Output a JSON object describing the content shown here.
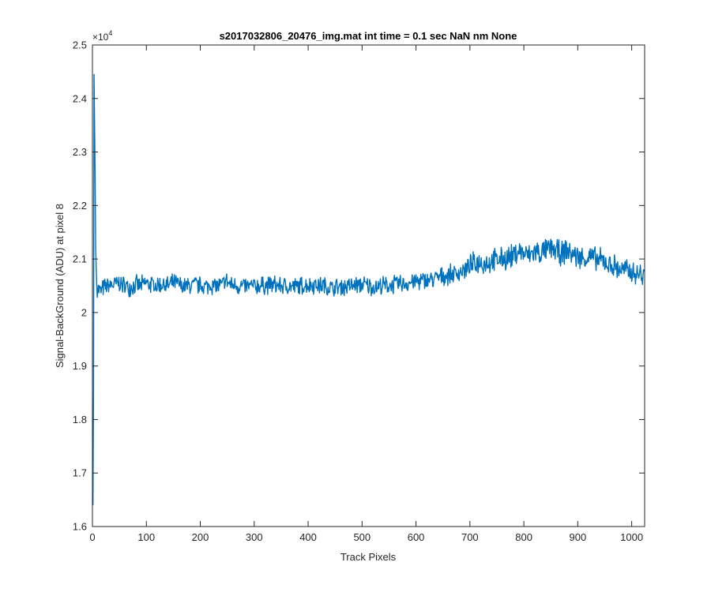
{
  "window": {
    "title": "s2017032806_20476_img.mat int time = 0.1 sec  NaN nm None"
  },
  "chart_data": {
    "type": "line",
    "title": "s2017032806_20476_img.mat int time = 0.1 sec  NaN nm None",
    "xlabel": "Track Pixels",
    "ylabel": "Signal-BackGround (ADU) at pixel 8",
    "xlim": [
      0,
      1024
    ],
    "ylim": [
      16000,
      25000
    ],
    "y_exponent_label": "×10",
    "y_exponent_power": "4",
    "x_ticks": [
      0,
      100,
      200,
      300,
      400,
      500,
      600,
      700,
      800,
      900,
      1000
    ],
    "x_tick_labels": [
      "0",
      "100",
      "200",
      "300",
      "400",
      "500",
      "600",
      "700",
      "800",
      "900",
      "1000"
    ],
    "y_ticks": [
      16000,
      17000,
      18000,
      19000,
      20000,
      21000,
      22000,
      23000,
      24000,
      25000
    ],
    "y_tick_labels": [
      "1.6",
      "1.7",
      "1.8",
      "1.9",
      "2",
      "2.1",
      "2.2",
      "2.3",
      "2.4",
      "2.5"
    ],
    "grid": false,
    "legend": "none",
    "series_color": "#0072BD",
    "series": [
      {
        "x": [
          1,
          2,
          3,
          4,
          5,
          6,
          8,
          10,
          15,
          20,
          30,
          40,
          50,
          60,
          70,
          80,
          90,
          100,
          110,
          120,
          130,
          140,
          150,
          160,
          170,
          180,
          190,
          200,
          210,
          220,
          230,
          240,
          248,
          255,
          270,
          290,
          310,
          330,
          350,
          370,
          390,
          410,
          430,
          445,
          460,
          480,
          500,
          520,
          540,
          560,
          580,
          600,
          620,
          640,
          660,
          680,
          700,
          715,
          725,
          740,
          760,
          780,
          790,
          800,
          810,
          820,
          830,
          840,
          850,
          860,
          870,
          880,
          890,
          900,
          910,
          920,
          930,
          940,
          950,
          960,
          970,
          980,
          990,
          1000,
          1010,
          1020,
          1024
        ],
        "y": [
          16400,
          18500,
          24450,
          23500,
          22600,
          21200,
          20500,
          20450,
          20400,
          20450,
          20500,
          20520,
          20550,
          20500,
          20480,
          20520,
          20500,
          20550,
          20520,
          20500,
          20530,
          20500,
          20550,
          20520,
          20480,
          20500,
          20520,
          20500,
          20480,
          20520,
          20500,
          20500,
          20600,
          20520,
          20500,
          20480,
          20500,
          20520,
          20500,
          20480,
          20500,
          20520,
          20500,
          20450,
          20480,
          20500,
          20520,
          20480,
          20500,
          20520,
          20550,
          20580,
          20600,
          20650,
          20700,
          20750,
          20850,
          20950,
          20920,
          20950,
          21000,
          21050,
          21150,
          21100,
          21050,
          21150,
          21100,
          21150,
          21200,
          21150,
          21100,
          21150,
          21100,
          21050,
          21000,
          21050,
          21000,
          20980,
          20950,
          20900,
          20850,
          20800,
          20780,
          20750,
          20720,
          20700,
          20650
        ]
      }
    ]
  }
}
